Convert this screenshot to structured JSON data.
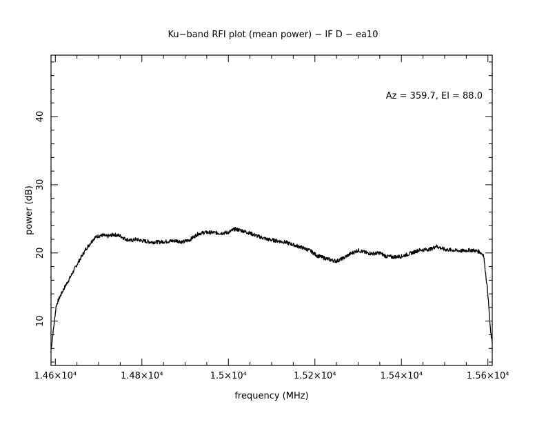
{
  "chart_data": {
    "type": "line",
    "title": "Ku−band RFI plot (mean power) − IF D − ea10",
    "xlabel": "frequency (MHz)",
    "ylabel": "power (dB)",
    "annotation": "Az = 359.7, El = 88.0",
    "xlim": [
      14590,
      15610
    ],
    "ylim": [
      3.5,
      49
    ],
    "x_ticks": [
      {
        "value": 14600,
        "label": "1.46×10⁴"
      },
      {
        "value": 14800,
        "label": "1.48×10⁴"
      },
      {
        "value": 15000,
        "label": "1.5×10⁴"
      },
      {
        "value": 15200,
        "label": "1.52×10⁴"
      },
      {
        "value": 15400,
        "label": "1.54×10⁴"
      },
      {
        "value": 15600,
        "label": "1.56×10⁴"
      }
    ],
    "y_ticks": [
      {
        "value": 10,
        "label": "10"
      },
      {
        "value": 20,
        "label": "20"
      },
      {
        "value": 30,
        "label": "30"
      },
      {
        "value": 40,
        "label": "40"
      }
    ],
    "series": [
      {
        "values_x": [
          14590,
          14596,
          14602,
          14610,
          14620,
          14635,
          14650,
          14670,
          14690,
          14700,
          14710,
          14720,
          14735,
          14750,
          14760,
          14775,
          14785,
          14800,
          14820,
          14840,
          14860,
          14880,
          14895,
          14910,
          14930,
          14945,
          14960,
          14980,
          15000,
          15015,
          15030,
          15050,
          15070,
          15090,
          15110,
          15130,
          15150,
          15170,
          15190,
          15205,
          15220,
          15235,
          15250,
          15265,
          15280,
          15300,
          15320,
          15335,
          15350,
          15365,
          15380,
          15400,
          15420,
          15440,
          15460,
          15470,
          15480,
          15500,
          15520,
          15540,
          15555,
          15565,
          15580,
          15590,
          15600,
          15606,
          15610
        ],
        "values_y": [
          5.8,
          9.0,
          12.3,
          13.5,
          14.8,
          16.5,
          18.3,
          20.5,
          22.2,
          22.5,
          22.6,
          22.4,
          22.7,
          22.5,
          22.1,
          21.8,
          22.0,
          21.8,
          21.6,
          21.6,
          21.7,
          21.8,
          21.6,
          21.9,
          22.8,
          23.0,
          23.0,
          22.9,
          23.0,
          23.5,
          23.3,
          22.9,
          22.4,
          22.0,
          21.8,
          21.6,
          21.2,
          20.8,
          20.3,
          19.6,
          19.3,
          19.0,
          18.8,
          19.2,
          19.8,
          20.4,
          20.0,
          19.9,
          20.0,
          19.5,
          19.4,
          19.5,
          19.9,
          20.4,
          20.5,
          20.6,
          21.0,
          20.5,
          20.4,
          20.3,
          20.4,
          20.4,
          20.2,
          19.7,
          14.0,
          8.5,
          6.8
        ]
      }
    ]
  }
}
